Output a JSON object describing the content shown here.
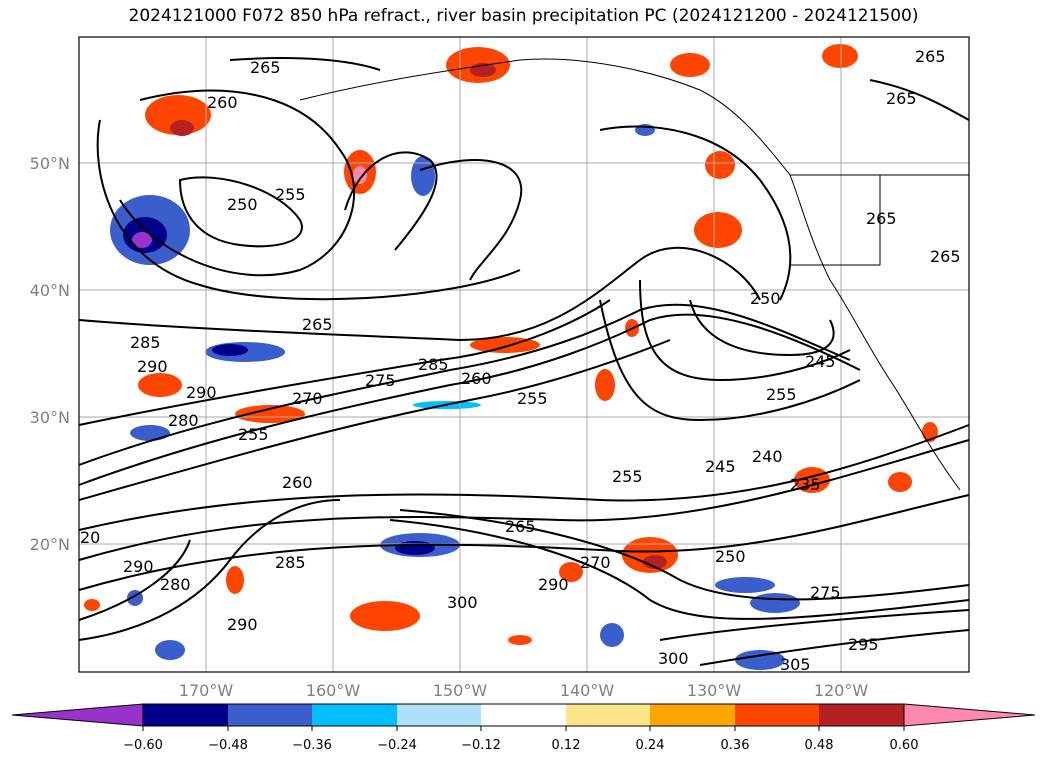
{
  "title": "2024121000 F072 850 hPa refract., river basin precipitation PC (2024121200 - 2024121500)",
  "map": {
    "lat_labels": [
      "50°N",
      "40°N",
      "30°N",
      "20°N"
    ],
    "lon_labels": [
      "170°W",
      "160°W",
      "150°W",
      "140°W",
      "130°W",
      "120°W"
    ],
    "contour_labels": [
      "265",
      "260",
      "250",
      "255",
      "265",
      "285",
      "290",
      "290",
      "280",
      "255",
      "270",
      "275",
      "285",
      "260",
      "255",
      "260",
      "285",
      "290",
      "280",
      "290",
      "300",
      "265",
      "270",
      "290",
      "255",
      "245",
      "240",
      "235",
      "250",
      "255",
      "245",
      "250",
      "265",
      "265",
      "265",
      "265",
      "275",
      "295",
      "300",
      "305",
      "20"
    ]
  },
  "colorbar": {
    "ticks": [
      "−0.60",
      "−0.48",
      "−0.36",
      "−0.24",
      "−0.12",
      "0.12",
      "0.24",
      "0.36",
      "0.48",
      "0.60"
    ],
    "colors": [
      "#9932cc",
      "#00008b",
      "#3a5fcd",
      "#00bfff",
      "#afe0f7",
      "#ffffff",
      "#fde68a",
      "#ffa500",
      "#ff4500",
      "#b22222",
      "#ff88b0"
    ]
  }
}
